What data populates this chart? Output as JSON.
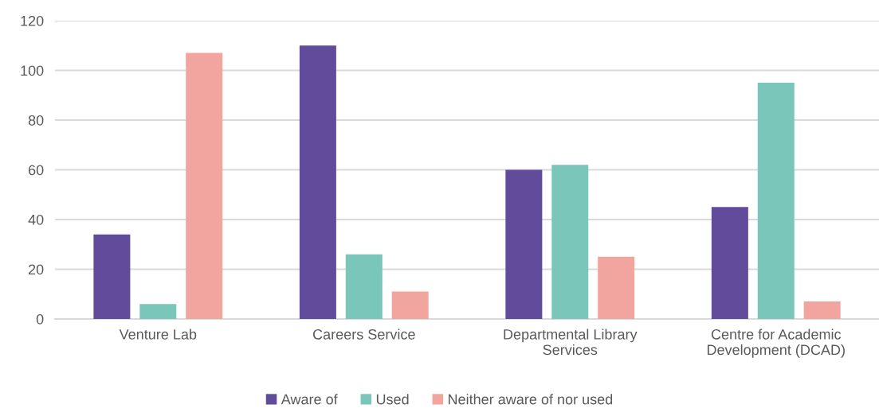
{
  "chart_data": {
    "type": "bar",
    "categories": [
      "Venture Lab",
      "Careers Service",
      "Departmental Library\nServices",
      "Centre for Academic\nDevelopment (DCAD)"
    ],
    "series": [
      {
        "name": "Aware of",
        "color": "#604c9a",
        "values": [
          34,
          110,
          60,
          45
        ]
      },
      {
        "name": "Used",
        "color": "#7bc6ba",
        "values": [
          6,
          26,
          62,
          95
        ]
      },
      {
        "name": "Neither aware of nor used",
        "color": "#f2a59f",
        "values": [
          107,
          11,
          25,
          7
        ]
      }
    ],
    "ylim": [
      0,
      120
    ],
    "yticks": [
      0,
      20,
      40,
      60,
      80,
      100,
      120
    ],
    "grid": "y",
    "legend": "bottom"
  }
}
